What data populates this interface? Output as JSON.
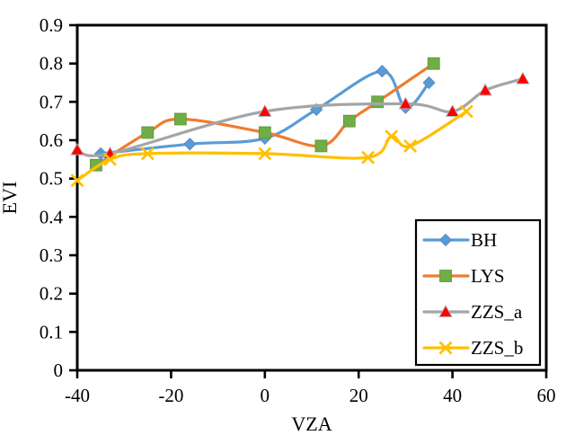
{
  "chart_data": {
    "type": "line",
    "title": "",
    "xlabel": "VZA",
    "ylabel": "EVI",
    "xlim": [
      -40,
      60
    ],
    "ylim": [
      0,
      0.9
    ],
    "x_ticks": [
      -40,
      -20,
      0,
      20,
      40,
      60
    ],
    "x_tick_labels": [
      "-40",
      "-20",
      "0",
      "20",
      "40",
      "60"
    ],
    "y_ticks": [
      0,
      0.1,
      0.2,
      0.3,
      0.4,
      0.5,
      0.6,
      0.7,
      0.8,
      0.9
    ],
    "y_tick_labels": [
      "0",
      "0.1",
      "0.2",
      "0.3",
      "0.4",
      "0.5",
      "0.6",
      "0.7",
      "0.8",
      "0.9"
    ],
    "grid": false,
    "legend_position": "inside-lower-right",
    "line_style": "smooth",
    "series": [
      {
        "name": "BH",
        "line_color": "#5B9BD5",
        "marker": "diamond",
        "marker_color": "#5B9BD5",
        "x": [
          -35,
          -16,
          0,
          11,
          25,
          30,
          35
        ],
        "y": [
          0.565,
          0.59,
          0.605,
          0.68,
          0.78,
          0.685,
          0.75
        ]
      },
      {
        "name": "LYS",
        "line_color": "#ED7D31",
        "marker": "square",
        "marker_color": "#70AD47",
        "x": [
          -36,
          -25,
          -18,
          0,
          12,
          18,
          24,
          36
        ],
        "y": [
          0.535,
          0.62,
          0.655,
          0.62,
          0.585,
          0.65,
          0.7,
          0.8
        ]
      },
      {
        "name": "ZZS_a",
        "line_color": "#A5A5A5",
        "marker": "triangle",
        "marker_color": "#FF0000",
        "x": [
          -40,
          -33,
          0,
          30,
          40,
          47,
          55
        ],
        "y": [
          0.575,
          0.565,
          0.675,
          0.695,
          0.675,
          0.73,
          0.76
        ]
      },
      {
        "name": "ZZS_b",
        "line_color": "#FFC000",
        "marker": "x",
        "marker_color": "#FFC000",
        "x": [
          -40,
          -33,
          -25,
          0,
          22,
          27,
          31,
          43
        ],
        "y": [
          0.495,
          0.55,
          0.565,
          0.565,
          0.555,
          0.61,
          0.585,
          0.675
        ]
      }
    ],
    "frame_color": "#000000",
    "background_color": "#ffffff"
  }
}
